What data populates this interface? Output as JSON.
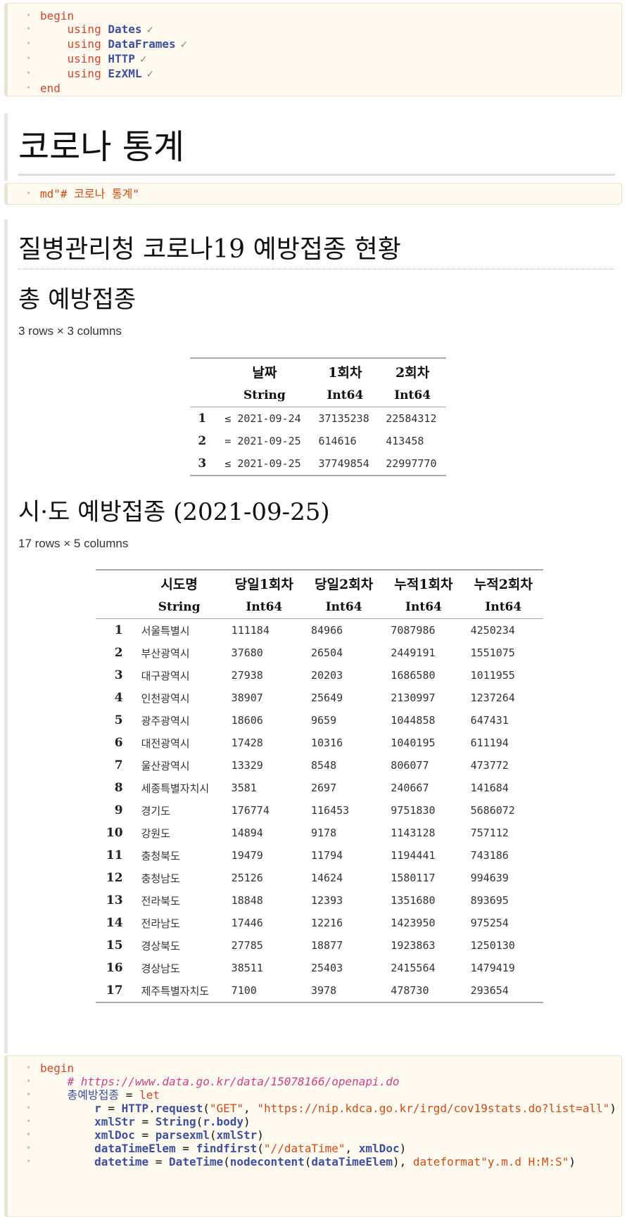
{
  "cell1": {
    "lines": [
      {
        "kw": "begin"
      },
      {
        "using": "using",
        "pkg": "Dates"
      },
      {
        "using": "using",
        "pkg": "DataFrames"
      },
      {
        "using": "using",
        "pkg": "HTTP"
      },
      {
        "using": "using",
        "pkg": "EzXML"
      },
      {
        "kw": "end"
      }
    ],
    "check": "✓"
  },
  "heading1": "코로나 통계",
  "cell2_code": "md\"# 코로나 통계\"",
  "heading2": "질병관리청 코로나19 예방접종 현황",
  "section_total": {
    "title": "총 예방접종",
    "dims": "3 rows × 3 columns",
    "columns": [
      "날짜",
      "1회차",
      "2회차"
    ],
    "types": [
      "String",
      "Int64",
      "Int64"
    ],
    "rows": [
      {
        "idx": "1",
        "prefix": "≤",
        "date": "2021-09-24",
        "c1": "37135238",
        "c2": "22584312"
      },
      {
        "idx": "2",
        "prefix": "=",
        "date": "2021-09-25",
        "c1": "614616",
        "c2": "413458"
      },
      {
        "idx": "3",
        "prefix": "≤",
        "date": "2021-09-25",
        "c1": "37749854",
        "c2": "22997770"
      }
    ]
  },
  "section_region": {
    "title": "시·도 예방접종 (2021-09-25)",
    "dims": "17 rows × 5 columns",
    "columns": [
      "시도명",
      "당일1회차",
      "당일2회차",
      "누적1회차",
      "누적2회차"
    ],
    "types": [
      "String",
      "Int64",
      "Int64",
      "Int64",
      "Int64"
    ],
    "rows": [
      [
        "1",
        "서울특별시",
        "111184",
        "84966",
        "7087986",
        "4250234"
      ],
      [
        "2",
        "부산광역시",
        "37680",
        "26504",
        "2449191",
        "1551075"
      ],
      [
        "3",
        "대구광역시",
        "27938",
        "20203",
        "1686580",
        "1011955"
      ],
      [
        "4",
        "인천광역시",
        "38907",
        "25649",
        "2130997",
        "1237264"
      ],
      [
        "5",
        "광주광역시",
        "18606",
        "9659",
        "1044858",
        "647431"
      ],
      [
        "6",
        "대전광역시",
        "17428",
        "10316",
        "1040195",
        "611194"
      ],
      [
        "7",
        "울산광역시",
        "13329",
        "8548",
        "806077",
        "473772"
      ],
      [
        "8",
        "세종특별자치시",
        "3581",
        "2697",
        "240667",
        "141684"
      ],
      [
        "9",
        "경기도",
        "176774",
        "116453",
        "9751830",
        "5686072"
      ],
      [
        "10",
        "강원도",
        "14894",
        "9178",
        "1143128",
        "757112"
      ],
      [
        "11",
        "충청북도",
        "19479",
        "11794",
        "1194441",
        "743186"
      ],
      [
        "12",
        "충청남도",
        "25126",
        "14624",
        "1580117",
        "994639"
      ],
      [
        "13",
        "전라북도",
        "18848",
        "12393",
        "1351680",
        "893695"
      ],
      [
        "14",
        "전라남도",
        "17446",
        "12216",
        "1423950",
        "975254"
      ],
      [
        "15",
        "경상북도",
        "27785",
        "18877",
        "1923863",
        "1250130"
      ],
      [
        "16",
        "경상남도",
        "38511",
        "25403",
        "2415564",
        "1479419"
      ],
      [
        "17",
        "제주특별자치도",
        "7100",
        "3978",
        "478730",
        "293654"
      ]
    ]
  },
  "cell3": {
    "begin": "begin",
    "comment": "# https://www.data.go.kr/data/15078166/openapi.do",
    "var_total": "총예방접종",
    "eq": "=",
    "let": "let",
    "r": "r",
    "http": "HTTP",
    "request": "request",
    "get": "\"GET\"",
    "url": "\"https://nip.kdca.go.kr/irgd/cov19stats.do?list=all\"",
    "xmlStr": "xmlStr",
    "String": "String",
    "r_body": "r.body",
    "xmlDoc": "xmlDoc",
    "parsexml": "parsexml",
    "dataTimeElem": "dataTimeElem",
    "findfirst": "findfirst",
    "xpath": "\"//dataTime\"",
    "datetime": "datetime",
    "DateTime": "DateTime",
    "nodecontent": "nodecontent",
    "dateformat": "dateformat\"y.m.d H:M:S\""
  }
}
